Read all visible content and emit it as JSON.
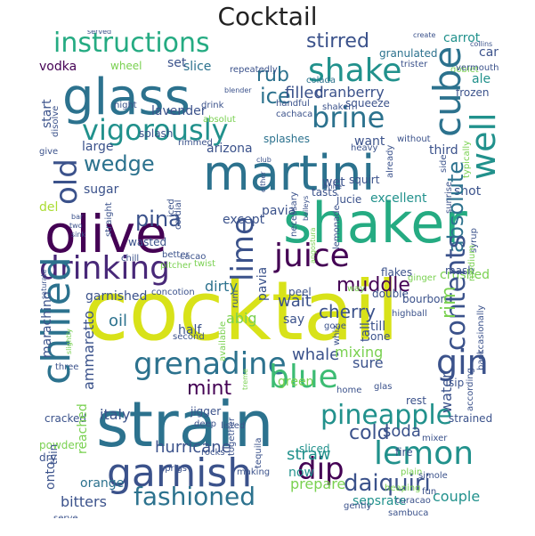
{
  "title": "Cocktail",
  "palette": {
    "c1": "#440154",
    "c2": "#3b528b",
    "c3": "#21918c",
    "c4": "#5ec962",
    "c5": "#fde725",
    "c6": "#2c728e",
    "c7": "#7ad151",
    "c8": "#aadc32"
  },
  "words": {
    "cocktail": "cocktail",
    "strain": "strain",
    "shaker": "shaker",
    "martini": "martini",
    "olive": "olive",
    "glass": "glass",
    "garnish": "garnish",
    "chilled": "chilled",
    "drinking": "drinking",
    "juice": "juice",
    "grenadine": "grenadine",
    "lemon": "lemon",
    "pineapple": "pineapple",
    "instructions": "instructions",
    "vigorously": "vigorously",
    "fashioned": "fashioned",
    "daiquiri": "daiquiri",
    "cube": "cube",
    "well": "well",
    "gin": "gin",
    "blue": "blue",
    "dip": "dip",
    "shake": "shake",
    "brine": "brine",
    "old": "old",
    "contents": "contents",
    "absolute": "absolute",
    "lime": "lime",
    "pina": "pina",
    "wedge": "wedge",
    "muddle": "muddle",
    "cold": "cold",
    "mint": "mint",
    "stirred": "stirred",
    "rub": "rub",
    "ice": "ice",
    "cherry": "cherry",
    "rim": "rim",
    "wait": "wait",
    "filled": "filled",
    "cranberry": "cranberry",
    "whale": "whale",
    "straw": "straw",
    "soda": "soda",
    "hurricane": "hurricane",
    "bitters": "bitters",
    "orange": "orange",
    "prepare": "prepare",
    "couple": "couple",
    "sepsrate": "sepsrate",
    "italy": "italy",
    "oil": "oil",
    "dirty": "dirty",
    "garnished": "garnished",
    "vodka": "vodka",
    "slice": "slice",
    "set": "set",
    "arizona": "arizona",
    "sugar": "sugar",
    "large": "large",
    "want": "want",
    "third": "third",
    "shot": "shot",
    "excellent": "excellent",
    "jucie": "jucie",
    "pavia": "pavia",
    "except": "except",
    "mixing": "mixing",
    "sure": "sure",
    "water": "water",
    "ammaretto": "ammaretto",
    "abig": "abig",
    "cans": "cans",
    "carrot": "carrot",
    "ale": "ale",
    "frozen": "frozen",
    "granulated": "granulated",
    "colada": "colada",
    "lavender": "lavender",
    "splashes": "splashes",
    "squeeze": "squeeze",
    "sliced": "sliced",
    "reached": "reached",
    "onto": "onto",
    "now": "now",
    "crushed": "crushed",
    "green": "green",
    "strained": "strained",
    "mash": "mash",
    "flakes": "flakes",
    "peel": "peel",
    "say": "say",
    "half": "half",
    "del": "del",
    "wet": "wet",
    "tasts": "tasts",
    "squirt": "squirt",
    "wasted": "wasted",
    "tall": "tall",
    "till": "till",
    "one": "one",
    "sip": "sip",
    "double": "double",
    "bourbon": "bourbon",
    "marachino": "marachino",
    "cracked": "cracked",
    "drinker": "drinker",
    "plain": "plain",
    "jigger": "jigger",
    "fire": "fire",
    "rest": "rest",
    "dry": "dry",
    "thin": "thin",
    "powder": "powder",
    "second": "second",
    "three": "three",
    "glas": "glas",
    "home": "home",
    "deep": "deep",
    "gently": "gently",
    "fun": "fun",
    "simple": "simole",
    "rocks": "rocks",
    "making": "making",
    "sprigs": "sprigs",
    "heaping": "heaping",
    "curacao": "curacao",
    "serve": "serve",
    "mixed": "mixed",
    "sambuca": "sambuca",
    "cacao": "cacao",
    "twist": "twist",
    "pitcher": "pitcher",
    "chill": "chill",
    "better": "better",
    "splash": "splash",
    "rimmed": "rimmed",
    "wheel": "wheel",
    "night": "night",
    "start": "start",
    "disolve": "disolve",
    "give": "give",
    "drink": "drink",
    "blender": "blender",
    "handful": "handful",
    "shaken": "shaken",
    "cachaca": "cachaca",
    "tristter": "trister",
    "goblet": "goblet",
    "vermouth": "vermouth",
    "collins": "collins",
    "create": "create",
    "served": "served",
    "tumbler": "tumbler",
    "repeatedly": "repeatedly",
    "side": "side",
    "sunrise": "sunrise",
    "typically": "typically",
    "without": "without",
    "heavy": "heavy",
    "already": "already",
    "syrup": "syrup",
    "medium": "medium",
    "according": "according",
    "occasionally": "occasionally",
    "back": "back",
    "highball": "highball",
    "ginger": "ginger",
    "way": "way",
    "gone": "gone",
    "whiz": "whiz",
    "rum": "rum",
    "available": "available",
    "cordial": "cordial",
    "iced": "iced",
    "straight": "straight",
    "sink": "sink",
    "two": "two",
    "bar": "bar",
    "lemonade": "lemonade",
    "necessary": "necessary",
    "angostura": "angostura",
    "cream": "cream",
    "concotion": "concotion",
    "listed": "listed",
    "together": "together",
    "tequila": "tequila",
    "treme": "treme",
    "either": "either",
    "slightly": "slightly",
    "saturate": "saturate",
    "white": "white",
    "club": "club",
    "mixer": "mixer",
    "baileys": "baileys",
    "finely": "finely",
    "absolut": "absolut",
    "tall2": "tall",
    "sweet": "sweet",
    "cube2": "cube"
  }
}
